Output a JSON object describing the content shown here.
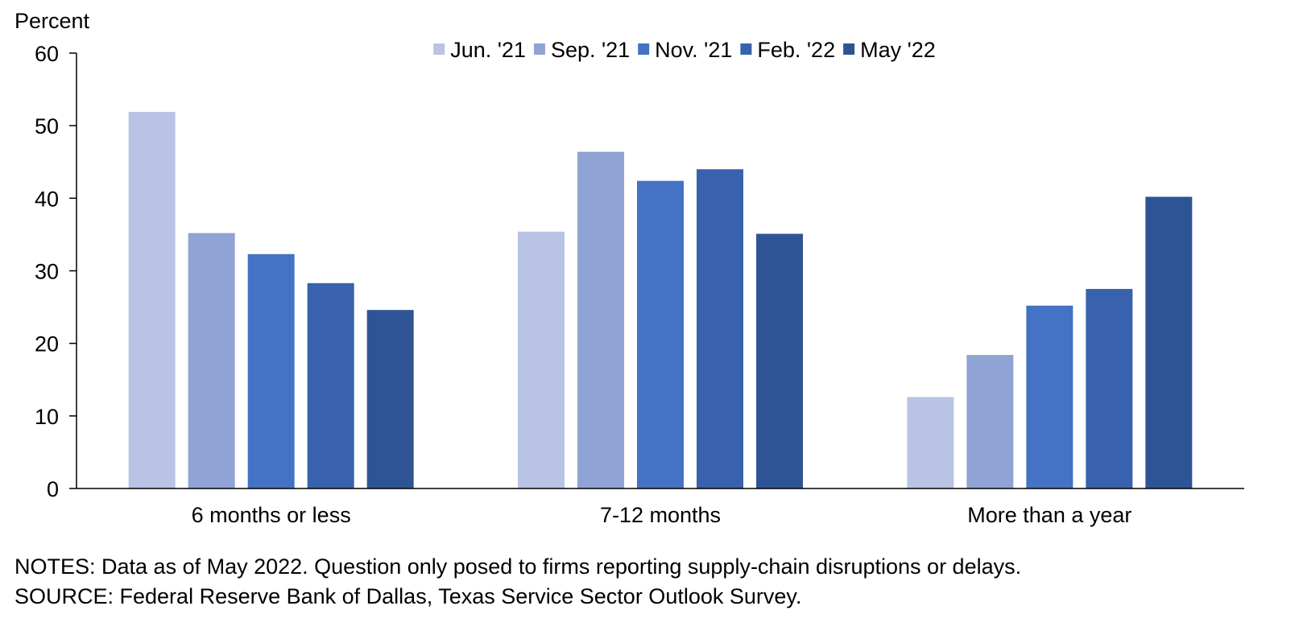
{
  "chart_data": {
    "type": "bar",
    "ylabel": "Percent",
    "ylim": [
      0,
      60
    ],
    "yticks": [
      0,
      10,
      20,
      30,
      40,
      50,
      60
    ],
    "categories": [
      "6 months or less",
      "7-12 months",
      "More than a year"
    ],
    "series": [
      {
        "name": "Jun. '21",
        "color": "#b9c3e3",
        "values": [
          51.9,
          35.4,
          12.6
        ]
      },
      {
        "name": "Sep. '21",
        "color": "#8fa4d4",
        "values": [
          35.2,
          46.4,
          18.4
        ]
      },
      {
        "name": "Nov. '21",
        "color": "#4472c4",
        "values": [
          32.3,
          42.4,
          25.2
        ]
      },
      {
        "name": "Feb. '22",
        "color": "#3862ad",
        "values": [
          28.3,
          44.0,
          27.5
        ]
      },
      {
        "name": "May '22",
        "color": "#2f5496",
        "values": [
          24.6,
          35.1,
          40.2
        ]
      }
    ],
    "legend": "top",
    "grid": false
  },
  "notes": {
    "line1": "NOTES: Data as of May 2022. Question only posed to firms reporting supply-chain disruptions or delays.",
    "line2": "SOURCE: Federal Reserve Bank of Dallas, Texas Service Sector Outlook Survey."
  }
}
